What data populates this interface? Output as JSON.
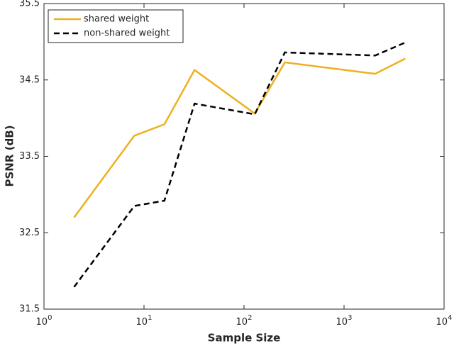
{
  "chart_data": {
    "type": "line",
    "x_label": "Sample Size",
    "y_label": "PSNR (dB)",
    "x": [
      2,
      8,
      16,
      32,
      128,
      256,
      2048,
      4096
    ],
    "series": [
      {
        "name": "shared weight",
        "color": "#edb120",
        "dash": "solid",
        "values": [
          32.7,
          33.77,
          33.92,
          34.63,
          34.06,
          34.73,
          34.58,
          34.78
        ]
      },
      {
        "name": "non-shared weight",
        "color": "#000000",
        "dash": "dashed",
        "values": [
          31.79,
          32.85,
          32.92,
          34.19,
          34.05,
          34.86,
          34.82,
          34.99
        ]
      }
    ],
    "xscale": "log",
    "xlim": [
      1,
      10000
    ],
    "xticks": [
      {
        "value": 1,
        "label": "10",
        "exponent": "0"
      },
      {
        "value": 10,
        "label": "10",
        "exponent": "1"
      },
      {
        "value": 100,
        "label": "10",
        "exponent": "2"
      },
      {
        "value": 1000,
        "label": "10",
        "exponent": "3"
      },
      {
        "value": 10000,
        "label": "10",
        "exponent": "4"
      }
    ],
    "ylim": [
      31.5,
      35.5
    ],
    "yticks": [
      31.5,
      32.5,
      33.5,
      34.5,
      35.5
    ],
    "grid": false,
    "legend": "top-left"
  }
}
